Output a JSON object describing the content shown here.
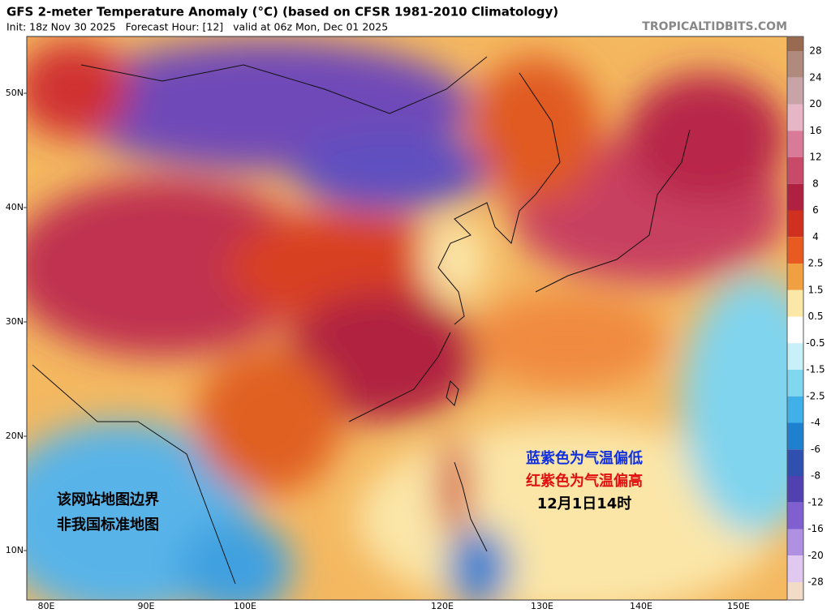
{
  "header": {
    "title": "GFS 2-meter Temperature Anomaly (°C) (based on CFSR 1981-2010 Climatology)",
    "subtitle": "Init: 18z Nov 30 2025   Forecast Hour: [12]   valid at 06z Mon, Dec 01 2025",
    "site": "TROPICALTIDBITS.COM"
  },
  "map": {
    "lat_labels": [
      "50N",
      "40N",
      "30N",
      "20N",
      "10N"
    ],
    "lon_labels": [
      "80E",
      "90E",
      "100E",
      "120E",
      "130E",
      "140E",
      "150E"
    ]
  },
  "colorbar": {
    "levels": [
      28,
      24,
      20,
      16,
      12,
      8,
      6,
      4,
      2.5,
      1.5,
      0.5,
      -0.5,
      -1.5,
      -2.5,
      -4,
      -6,
      -8,
      -12,
      -16,
      -20,
      -28
    ],
    "colors": [
      "#9a6a50",
      "#b08a7c",
      "#c8a4a8",
      "#e6b6c6",
      "#d87a98",
      "#c84a68",
      "#b02040",
      "#d0301e",
      "#e85a20",
      "#f0a040",
      "#fbe7a6",
      "#ffffff",
      "#c8f0f8",
      "#80d8f0",
      "#40b0e8",
      "#2080d0",
      "#3050b0",
      "#5040b0",
      "#8060d0",
      "#b090e0",
      "#e0c8f0",
      "#f2dcc8"
    ]
  },
  "annotations": {
    "right": [
      {
        "text": "蓝紫色为气温偏低",
        "color": "#1030e0"
      },
      {
        "text": "红紫色为气温偏高",
        "color": "#e01010"
      },
      {
        "text": "12月1日14时",
        "color": "#000000"
      }
    ],
    "left": [
      "该网站地图边界",
      "非我国标准地图"
    ]
  }
}
